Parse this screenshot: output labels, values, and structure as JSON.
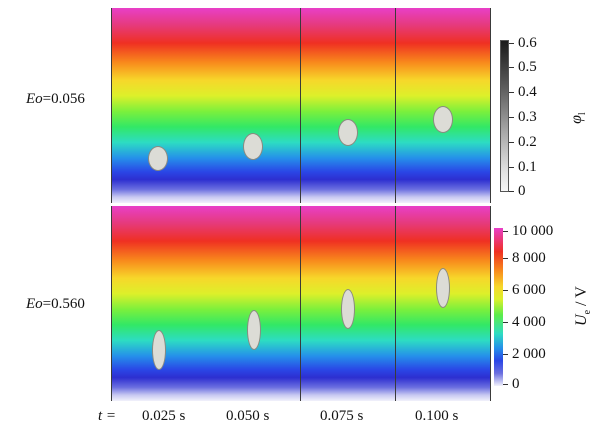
{
  "rows": [
    {
      "eo_symbol": "Eo",
      "eo_value": "=0.056"
    },
    {
      "eo_symbol": "Eo",
      "eo_value": "=0.560"
    }
  ],
  "time_prefix": "t =",
  "times": [
    "0.025 s",
    "0.050 s",
    "0.075 s",
    "0.100 s"
  ],
  "colorbar_phi": {
    "symbol": "φ",
    "subscript": "l",
    "ticks": [
      "0.6",
      "0.5",
      "0.4",
      "0.3",
      "0.2",
      "0.1",
      "0"
    ]
  },
  "colorbar_ue": {
    "symbol": "U",
    "subscript": "e",
    "unit": " / V",
    "ticks": [
      "10 000",
      "8 000",
      "6 000",
      "4 000",
      "2 000",
      "0"
    ]
  },
  "colors": {
    "field_top": "#e83fc8",
    "field_bottom": "#f2f2fb",
    "bubble": "#dcdcd6"
  }
}
